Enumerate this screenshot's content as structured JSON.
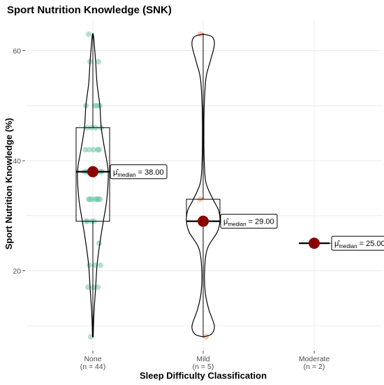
{
  "chart_data": {
    "type": "violin",
    "title": "Sport Nutrition Knowledge (SNK)",
    "xlabel": "Sleep Difficulty Classification",
    "ylabel": "Sport Nutrition Knowledge (%)",
    "ylim": [
      5.5,
      66
    ],
    "yticks": [
      20,
      40,
      60
    ],
    "grid": true,
    "categories": [
      {
        "name": "None",
        "n_label": "(n = 44)",
        "median": 38,
        "q1": 29,
        "q3": 46,
        "min": 8,
        "max": 63,
        "median_label": "38.00",
        "points": [
          63,
          58,
          58,
          50,
          50,
          50,
          50,
          46,
          46,
          46,
          46,
          42,
          42,
          42,
          42,
          42,
          38,
          38,
          38,
          38,
          38,
          38,
          38,
          38,
          38,
          33,
          33,
          33,
          33,
          33,
          33,
          33,
          29,
          29,
          29,
          29,
          25,
          21,
          21,
          21,
          17,
          17,
          17,
          8
        ]
      },
      {
        "name": "Mild",
        "n_label": "(n = 5)",
        "median": 29,
        "q1": 29,
        "q3": 33,
        "min": 8,
        "max": 63,
        "median_label": "29.00",
        "points": [
          63,
          33,
          29,
          29,
          8
        ]
      },
      {
        "name": "Moderate",
        "n_label": "(n = 2)",
        "median": 25,
        "q1": 25,
        "q3": 25,
        "min": 25,
        "max": 25,
        "median_label": "25.00",
        "points": [
          25,
          25
        ]
      }
    ],
    "median_symbol": "μ̂",
    "median_subscript": "median",
    "colors": {
      "None": "#66c2a5",
      "Mild": "#fc8d62",
      "Moderate": "#8da0cb",
      "median_point": "#8b0000",
      "outline": "#000000",
      "grid": "#ebebeb"
    }
  }
}
